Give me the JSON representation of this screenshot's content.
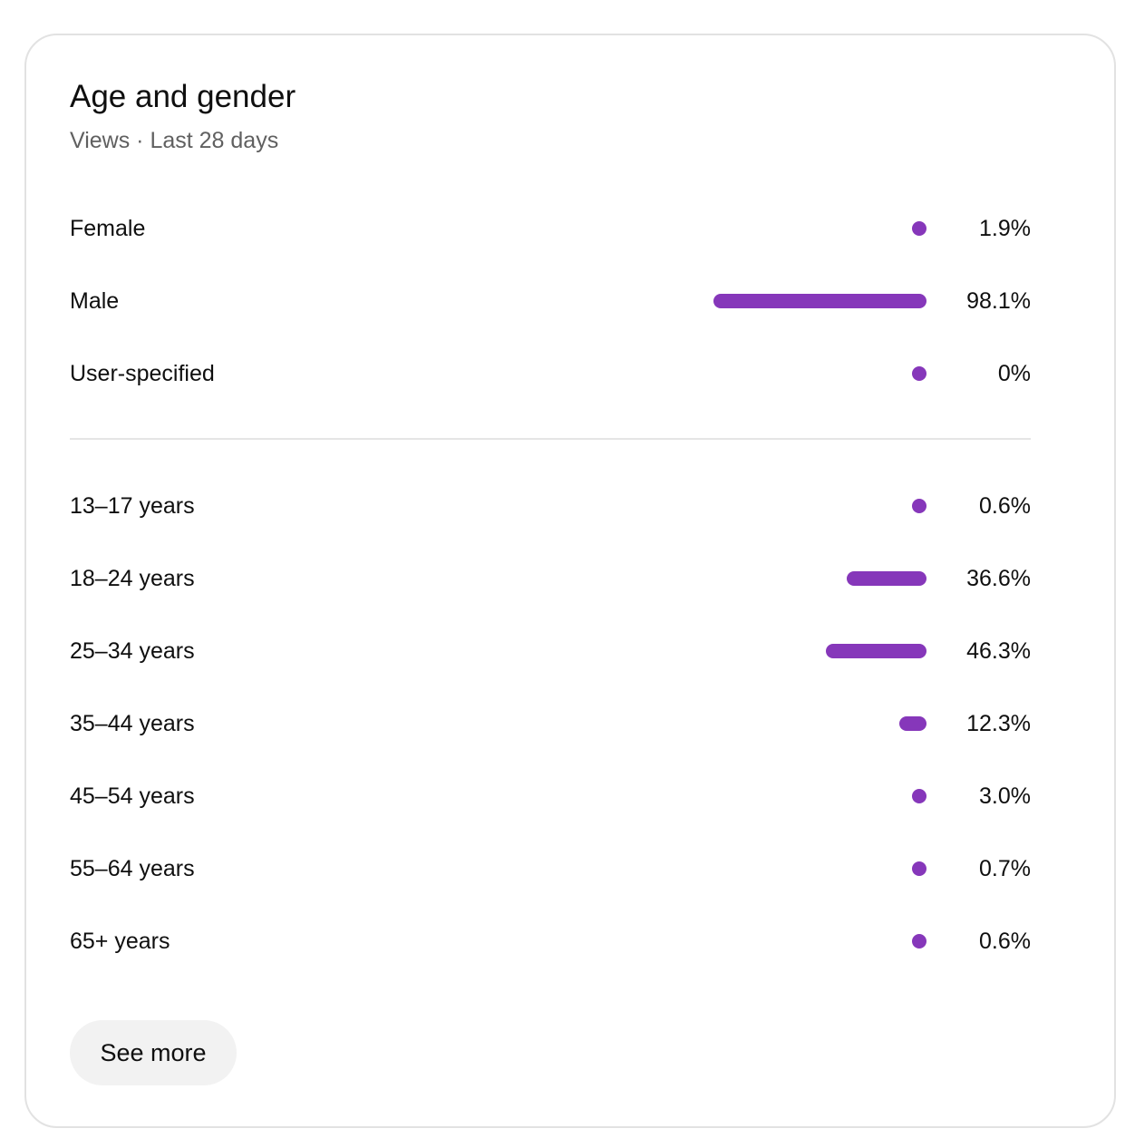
{
  "card": {
    "title": "Age and gender",
    "subtitle": "Views · Last 28 days",
    "see_more_label": "See more"
  },
  "colors": {
    "bar": "#8637ba",
    "divider": "#e5e5e5",
    "button_bg": "#f2f2f2",
    "subtitle_text": "#606060"
  },
  "chart_data": {
    "type": "bar",
    "orientation": "horizontal",
    "gender": [
      {
        "label": "Female",
        "value": 1.9,
        "display": "1.9%"
      },
      {
        "label": "Male",
        "value": 98.1,
        "display": "98.1%"
      },
      {
        "label": "User-specified",
        "value": 0,
        "display": "0%"
      }
    ],
    "age": [
      {
        "label": "13–17 years",
        "value": 0.6,
        "display": "0.6%"
      },
      {
        "label": "18–24 years",
        "value": 36.6,
        "display": "36.6%"
      },
      {
        "label": "25–34 years",
        "value": 46.3,
        "display": "46.3%"
      },
      {
        "label": "35–44 years",
        "value": 12.3,
        "display": "12.3%"
      },
      {
        "label": "45–54 years",
        "value": 3.0,
        "display": "3.0%"
      },
      {
        "label": "55–64 years",
        "value": 0.7,
        "display": "0.7%"
      },
      {
        "label": "65+ years",
        "value": 0.6,
        "display": "0.6%"
      }
    ]
  }
}
